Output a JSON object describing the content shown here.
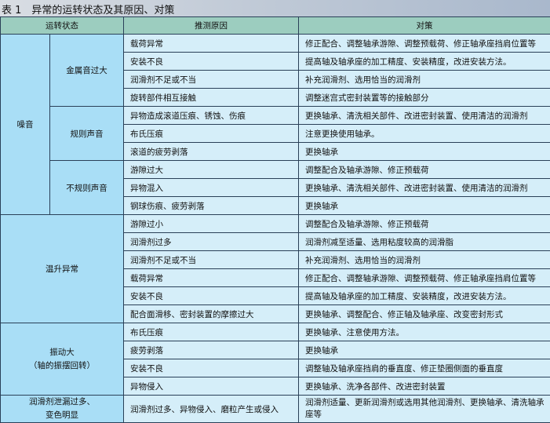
{
  "title": "表 1　异常的运转状态及其原因、对策",
  "headers": [
    "运转状态",
    "推测原因",
    "对策"
  ],
  "groups": {
    "noise": "噪音",
    "metal": "金属音过大",
    "regular": "规则声音",
    "irregular": "不规则声音",
    "temp": "温升异常",
    "vib1": "振动大",
    "vib2": "（轴的振摆回转）",
    "leak1": "润滑剂泄漏过多、",
    "leak2": "变色明显"
  },
  "rows": [
    {
      "cause": "载荷异常",
      "measure": "修正配合、调整轴承游隙、调整预载荷、修正轴承座挡肩位置等"
    },
    {
      "cause": "安装不良",
      "measure": "提高轴及轴承座的加工精度、安装精度，改进安装方法。"
    },
    {
      "cause": "润滑剂不足或不当",
      "measure": "补充润滑剂、选用恰当的润滑剂"
    },
    {
      "cause": "旋转部件相互接触",
      "measure": "调整迷宫式密封装置等的接触部分"
    },
    {
      "cause": "异物造成滚道压痕、锈蚀、伤痕",
      "measure": "更换轴承、清洗相关部件、改进密封装置、使用清洁的润滑剂"
    },
    {
      "cause": "布氏压痕",
      "measure": "注意更换使用轴承。"
    },
    {
      "cause": "滚道的疲劳剥落",
      "measure": "更换轴承"
    },
    {
      "cause": "游隙过大",
      "measure": "调整配合及轴承游隙、修正预载荷"
    },
    {
      "cause": "异物混入",
      "measure": "更换轴承、清洗相关部件、改进密封装置、使用清洁的润滑剂"
    },
    {
      "cause": "钢球伤痕、疲劳剥落",
      "measure": "更换轴承"
    },
    {
      "cause": "游隙过小",
      "measure": "调整配合及轴承游隙、修正预载荷"
    },
    {
      "cause": "润滑剂过多",
      "measure": "润滑剂减至适量、选用粘度较高的润滑脂"
    },
    {
      "cause": "润滑剂不足或不当",
      "measure": "补充润滑剂、选用恰当的润滑剂"
    },
    {
      "cause": "载荷异常",
      "measure": "修正配合、调整轴承游隙、调整预载荷、修正轴承座挡肩位置等"
    },
    {
      "cause": "安装不良",
      "measure": "提高轴及轴承座的加工精度、安装精度，改进安装方法。"
    },
    {
      "cause": "配合面滑移、密封装置的摩擦过大",
      "measure": "更换轴承、调整配合、修正轴及轴承座、改变密封形式"
    },
    {
      "cause": "布氏压痕",
      "measure": "更换轴承、注意使用方法。"
    },
    {
      "cause": "疲劳剥落",
      "measure": "更换轴承"
    },
    {
      "cause": "安装不良",
      "measure": "调整轴及轴承座挡肩的垂直度、修正垫圈侧面的垂直度"
    },
    {
      "cause": "异物侵入",
      "measure": "更换轴承、洗净各部件、改进密封装置"
    },
    {
      "cause": "润滑剂过多、异物侵入、磨粒产生或侵入",
      "measure": "润滑剂适量、更新润滑剂或选用其他润滑剂、更换轴承、清洗轴承座等"
    }
  ]
}
